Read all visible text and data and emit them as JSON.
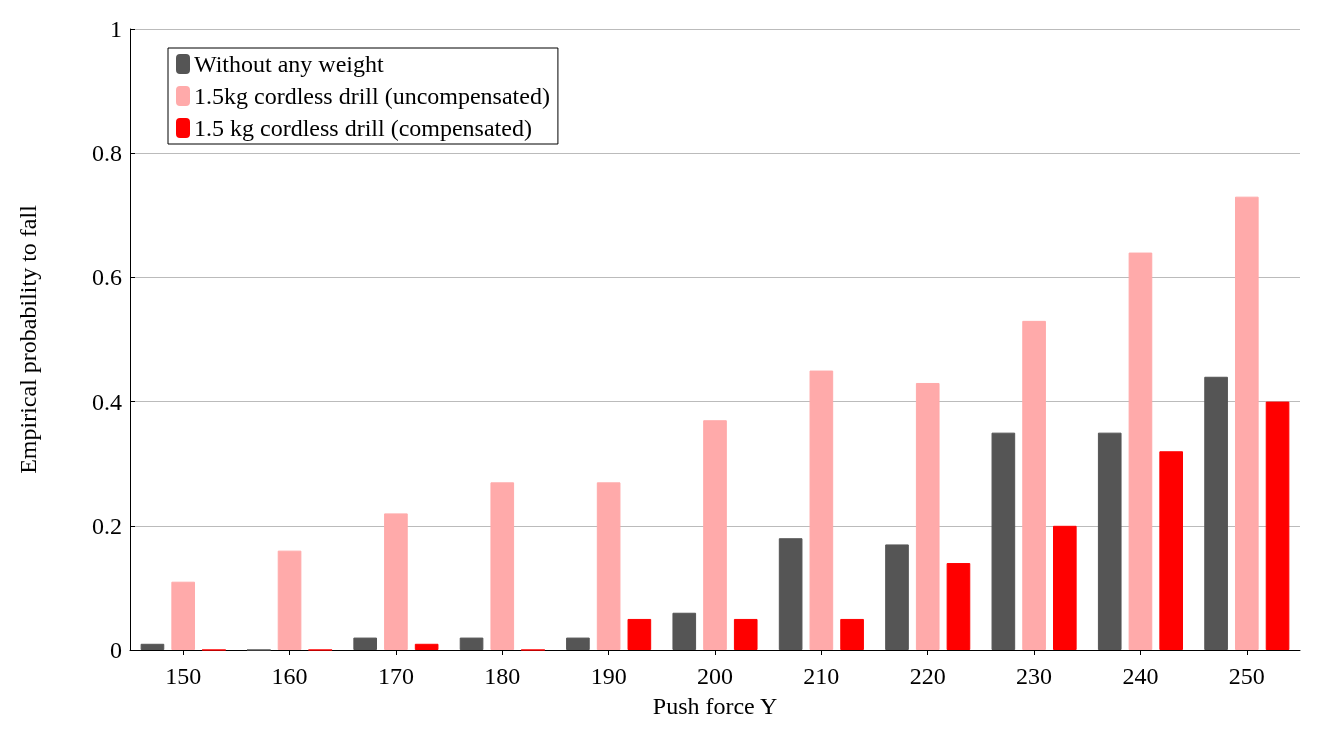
{
  "chart_data": {
    "type": "bar",
    "xlabel": "Push force Y",
    "ylabel": "Empirical probability to fall",
    "categories": [
      "150",
      "160",
      "170",
      "180",
      "190",
      "200",
      "210",
      "220",
      "230",
      "240",
      "250"
    ],
    "series": [
      {
        "name": "Without any weight",
        "color": "#555555",
        "values": [
          0.01,
          0,
          0.02,
          0.02,
          0.02,
          0.06,
          0.18,
          0.17,
          0.35,
          0.35,
          0.44
        ]
      },
      {
        "name": "1.5kg cordless drill (uncompensated)",
        "color": "#ffaaaa",
        "values": [
          0.11,
          0.16,
          0.22,
          0.27,
          0.27,
          0.37,
          0.45,
          0.43,
          0.53,
          0.64,
          0.73
        ]
      },
      {
        "name": "1.5 kg cordless drill (compensated)",
        "color": "#ff0000",
        "values": [
          0,
          0,
          0.01,
          0,
          0.05,
          0.05,
          0.05,
          0.14,
          0.2,
          0.32,
          0.4
        ]
      }
    ],
    "ylim": [
      0,
      1
    ],
    "yticks": [
      0,
      0.2,
      0.4,
      0.6,
      0.8,
      1
    ],
    "grid": "y",
    "legend": "top left"
  }
}
